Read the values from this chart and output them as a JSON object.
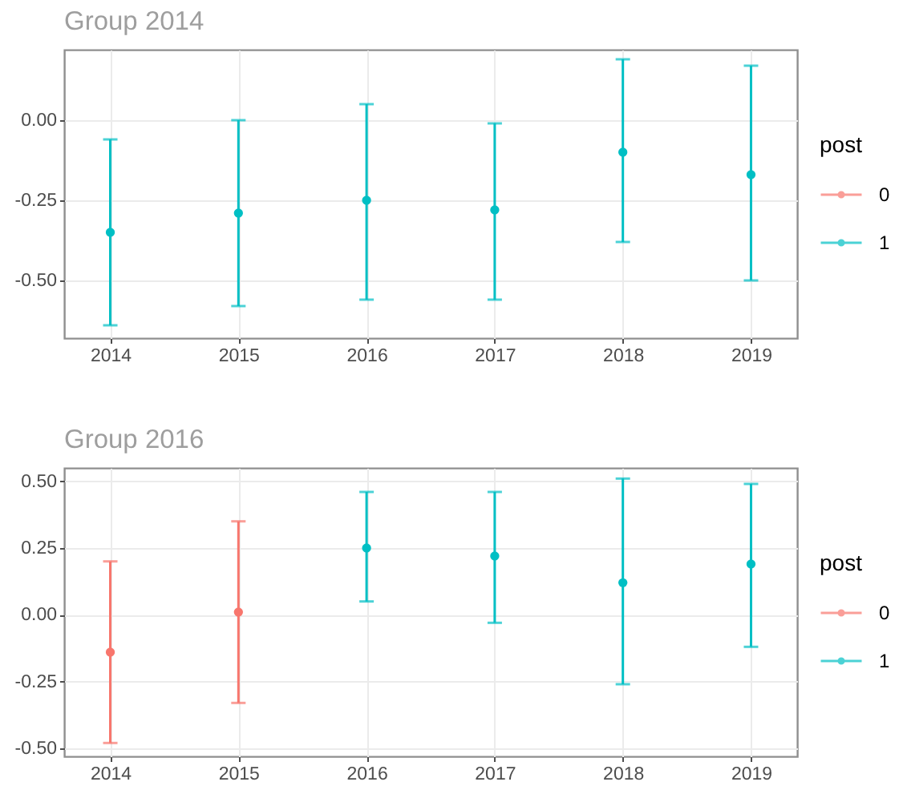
{
  "chart_data": [
    {
      "type": "scatter",
      "title": "Group 2014",
      "categories": [
        "2014",
        "2015",
        "2016",
        "2017",
        "2018",
        "2019"
      ],
      "series": [
        {
          "name": "0",
          "color": "#f8766d",
          "values": [
            null,
            null,
            null,
            null,
            null,
            null
          ],
          "errors": [
            null,
            null,
            null,
            null,
            null,
            null
          ]
        },
        {
          "name": "1",
          "color": "#00bfc4",
          "values": [
            -0.35,
            -0.29,
            -0.25,
            -0.28,
            -0.1,
            -0.17
          ],
          "errors": [
            [
              -0.64,
              -0.06
            ],
            [
              -0.58,
              0.0
            ],
            [
              -0.56,
              0.05
            ],
            [
              -0.56,
              -0.01
            ],
            [
              -0.38,
              0.19
            ],
            [
              -0.5,
              0.17
            ]
          ]
        }
      ],
      "ylim": [
        -0.68,
        0.22
      ],
      "yticks": [
        {
          "value": -0.5,
          "label": "-0.50"
        },
        {
          "value": -0.25,
          "label": "-0.25"
        },
        {
          "value": 0,
          "label": "0.00"
        }
      ],
      "legend_title": "post",
      "legend": "right",
      "grid": true,
      "marker": "circle"
    },
    {
      "type": "scatter",
      "title": "Group 2016",
      "categories": [
        "2014",
        "2015",
        "2016",
        "2017",
        "2018",
        "2019"
      ],
      "series": [
        {
          "name": "0",
          "color": "#f8766d",
          "values": [
            -0.14,
            0.01,
            null,
            null,
            null,
            null
          ],
          "errors": [
            [
              -0.48,
              0.2
            ],
            [
              -0.33,
              0.35
            ],
            null,
            null,
            null,
            null
          ]
        },
        {
          "name": "1",
          "color": "#00bfc4",
          "values": [
            null,
            null,
            0.25,
            0.22,
            0.12,
            0.19
          ],
          "errors": [
            null,
            null,
            [
              0.05,
              0.46
            ],
            [
              -0.03,
              0.46
            ],
            [
              -0.26,
              0.51
            ],
            [
              -0.12,
              0.49
            ]
          ]
        }
      ],
      "ylim": [
        -0.53,
        0.55
      ],
      "yticks": [
        {
          "value": -0.5,
          "label": "-0.50"
        },
        {
          "value": -0.25,
          "label": "-0.25"
        },
        {
          "value": 0,
          "label": "0.00"
        },
        {
          "value": 0.25,
          "label": "0.25"
        },
        {
          "value": 0.5,
          "label": "0.50"
        }
      ],
      "legend_title": "post",
      "legend": "right",
      "grid": true,
      "marker": "circle"
    }
  ]
}
